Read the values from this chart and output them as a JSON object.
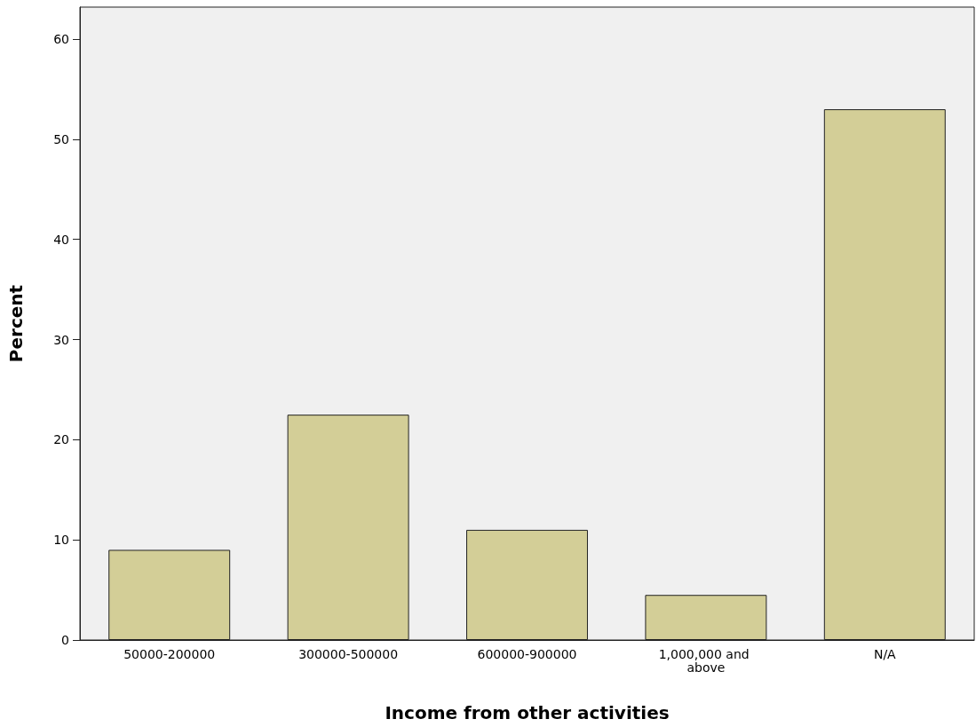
{
  "chart_data": {
    "type": "bar",
    "xlabel": "Income from other activities",
    "ylabel": "Percent",
    "categories": [
      "50000-200000",
      "300000-500000",
      "600000-900000",
      "1,000,000 and above",
      "N/A"
    ],
    "values": [
      9,
      22.5,
      11,
      4.5,
      53
    ],
    "color": "#d3ce97",
    "ylim": [
      0,
      63.2
    ],
    "yticks": [
      0,
      10,
      20,
      30,
      40,
      50,
      60
    ],
    "grid": false
  }
}
